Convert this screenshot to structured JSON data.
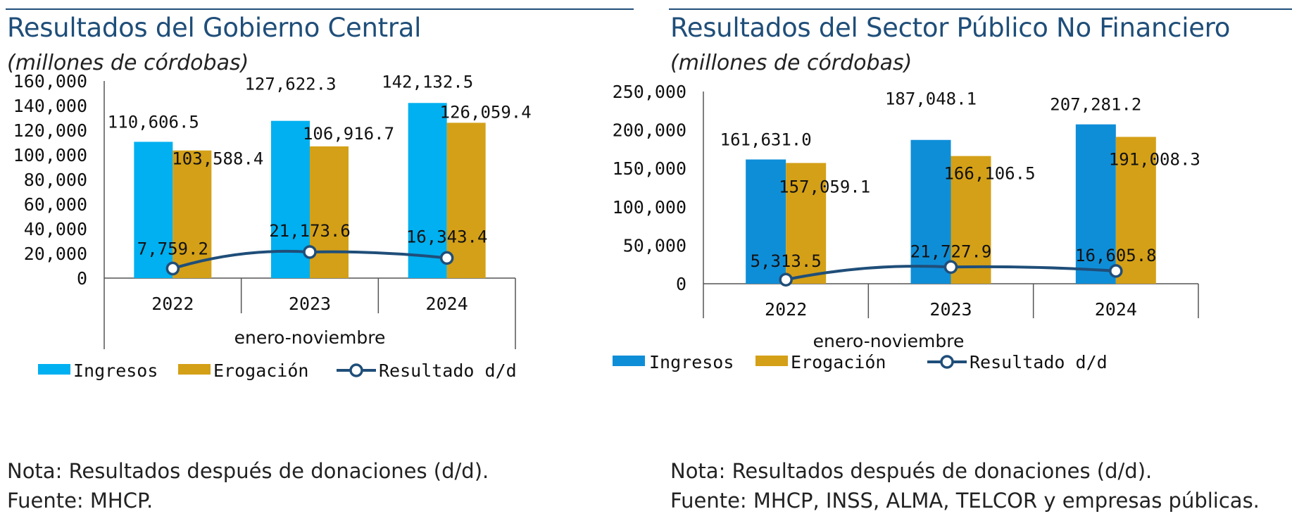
{
  "chart_data": [
    {
      "type": "bar",
      "title": "Resultados del Gobierno Central",
      "subtitle": "(millones de córdobas)",
      "xlabel": "enero-noviembre",
      "categories": [
        "2022",
        "2023",
        "2024"
      ],
      "yticks": [
        "0",
        "20,000",
        "40,000",
        "60,000",
        "80,000",
        "100,000",
        "120,000",
        "140,000",
        "160,000"
      ],
      "ylim": [
        0,
        160000
      ],
      "series": [
        {
          "name": "Ingresos",
          "type": "bar",
          "color": "#00b0f0",
          "values": [
            110606.5,
            127622.3,
            142132.5
          ],
          "labels": [
            "110,606.5",
            "127,622.3",
            "142,132.5"
          ]
        },
        {
          "name": "Erogación",
          "type": "bar",
          "color": "#d4a017",
          "values": [
            103588.4,
            106916.7,
            126059.4
          ],
          "labels": [
            "103,588.4",
            "106,916.7",
            "126,059.4"
          ]
        },
        {
          "name": "Resultado d/d",
          "type": "line",
          "color": "#1f4e79",
          "values": [
            7759.2,
            21173.6,
            16343.4
          ],
          "labels": [
            "7,759.2",
            "21,173.6",
            "16,343.4"
          ]
        }
      ],
      "legend": "bottom",
      "note": "Nota: Resultados después de donaciones (d/d).",
      "source": "Fuente: MHCP."
    },
    {
      "type": "bar",
      "title": "Resultados del Sector Público No Financiero",
      "subtitle": "(millones de córdobas)",
      "xlabel": "enero-noviembre",
      "categories": [
        "2022",
        "2023",
        "2024"
      ],
      "yticks": [
        "0",
        "50,000",
        "100,000",
        "150,000",
        "200,000",
        "250,000"
      ],
      "ylim": [
        0,
        250000
      ],
      "series": [
        {
          "name": "Ingresos",
          "type": "bar",
          "color": "#0f8ed8",
          "values": [
            161631.0,
            187048.1,
            207281.2
          ],
          "labels": [
            "161,631.0",
            "187,048.1",
            "207,281.2"
          ]
        },
        {
          "name": "Erogación",
          "type": "bar",
          "color": "#d4a017",
          "values": [
            157059.1,
            166106.5,
            191008.3
          ],
          "labels": [
            "157,059.1",
            "166,106.5",
            "191,008.3"
          ]
        },
        {
          "name": "Resultado d/d",
          "type": "line",
          "color": "#1f4e79",
          "values": [
            5313.5,
            21727.9,
            16605.8
          ],
          "labels": [
            "5,313.5",
            "21,727.9",
            "16,605.8"
          ]
        }
      ],
      "legend": "bottom",
      "note": "Nota: Resultados después de donaciones (d/d).",
      "source": "Fuente: MHCP, INSS, ALMA, TELCOR y empresas públicas."
    }
  ]
}
